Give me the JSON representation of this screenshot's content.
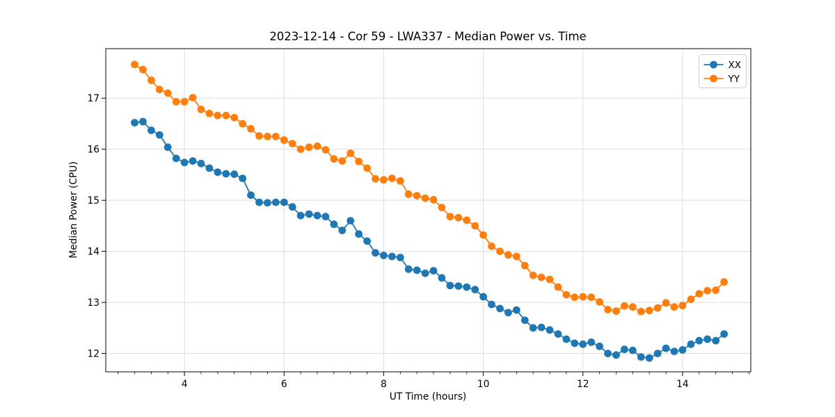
{
  "title": "2023-12-14 - Cor 59 - LWA337 - Median Power vs. Time",
  "chart_data": {
    "type": "line",
    "title": "2023-12-14 - Cor 59 - LWA337 - Median Power vs. Time",
    "xlabel": "UT Time (hours)",
    "ylabel": "Median Power (CPU)",
    "xlim": [
      2.42,
      15.37
    ],
    "ylim": [
      11.64,
      17.97
    ],
    "x_major_ticks": [
      4,
      6,
      8,
      10,
      12,
      14
    ],
    "x_minor_tick_step": 0.3333333,
    "y_major_ticks": [
      12,
      13,
      14,
      15,
      16,
      17
    ],
    "grid": "major-only",
    "grid_color": "#dcdcdc",
    "spine_color": "#000000",
    "legend_position": "upper-right",
    "marker": "circle",
    "marker_radius": 5.4,
    "line_width": 1.8,
    "x_start": 3.0,
    "x_step": 0.1666667,
    "series": [
      {
        "name": "XX",
        "color": "#1f77b4",
        "values": [
          16.52,
          16.54,
          16.37,
          16.28,
          16.04,
          15.82,
          15.74,
          15.77,
          15.72,
          15.63,
          15.55,
          15.52,
          15.51,
          15.43,
          15.1,
          14.96,
          14.95,
          14.96,
          14.96,
          14.87,
          14.7,
          14.73,
          14.7,
          14.68,
          14.53,
          14.41,
          14.6,
          14.34,
          14.2,
          13.97,
          13.92,
          13.9,
          13.88,
          13.65,
          13.63,
          13.57,
          13.62,
          13.48,
          13.33,
          13.32,
          13.3,
          13.25,
          13.11,
          12.96,
          12.88,
          12.8,
          12.85,
          12.65,
          12.5,
          12.51,
          12.46,
          12.38,
          12.28,
          12.2,
          12.18,
          12.22,
          12.14,
          12.0,
          11.97,
          12.08,
          12.06,
          11.93,
          11.91,
          12.0,
          12.1,
          12.04,
          12.07,
          12.18,
          12.25,
          12.28,
          12.25,
          12.38
        ]
      },
      {
        "name": "YY",
        "color": "#ff7f0e",
        "values": [
          17.66,
          17.56,
          17.35,
          17.17,
          17.1,
          16.93,
          16.93,
          17.01,
          16.78,
          16.7,
          16.66,
          16.66,
          16.62,
          16.5,
          16.4,
          16.26,
          16.25,
          16.25,
          16.18,
          16.11,
          16.0,
          16.04,
          16.06,
          15.99,
          15.81,
          15.77,
          15.92,
          15.76,
          15.63,
          15.42,
          15.4,
          15.43,
          15.38,
          15.12,
          15.09,
          15.04,
          15.01,
          14.86,
          14.68,
          14.66,
          14.61,
          14.5,
          14.32,
          14.1,
          14.0,
          13.93,
          13.9,
          13.72,
          13.53,
          13.49,
          13.45,
          13.3,
          13.15,
          13.1,
          13.11,
          13.1,
          13.01,
          12.86,
          12.83,
          12.93,
          12.91,
          12.82,
          12.84,
          12.89,
          12.99,
          12.91,
          12.94,
          13.06,
          13.17,
          13.23,
          13.24,
          13.4
        ]
      }
    ]
  },
  "legend": {
    "items": [
      {
        "label": "XX",
        "color": "#1f77b4"
      },
      {
        "label": "YY",
        "color": "#ff7f0e"
      }
    ]
  }
}
